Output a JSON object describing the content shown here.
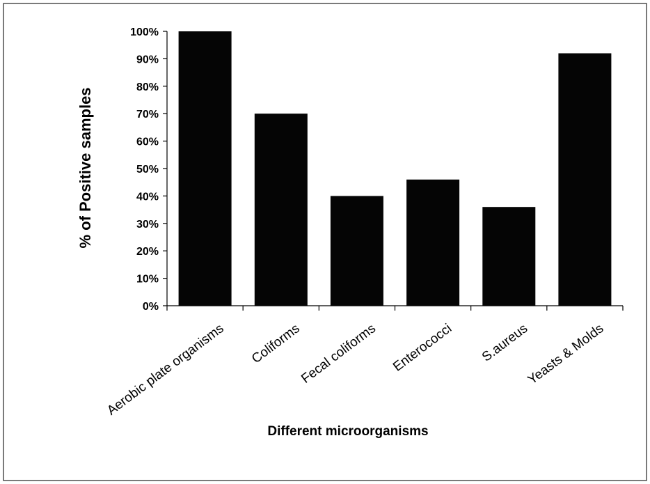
{
  "chart_data": {
    "type": "bar",
    "title": "",
    "xlabel": "Different microorganisms",
    "ylabel": "% of Positive samples",
    "categories": [
      "Aerobic plate organisms",
      "Coliforms",
      "Fecal coliforms",
      "Enterococci",
      "S.aureus",
      "Yeasts & Molds"
    ],
    "values": [
      100,
      70,
      40,
      46,
      36,
      92
    ],
    "ylim": [
      0,
      100
    ],
    "yticks": [
      0,
      10,
      20,
      30,
      40,
      50,
      60,
      70,
      80,
      90,
      100
    ],
    "ytick_labels": [
      "0%",
      "10%",
      "20%",
      "30%",
      "40%",
      "50%",
      "60%",
      "70%",
      "80%",
      "90%",
      "100%"
    ],
    "grid": false,
    "legend": "none",
    "colors": {
      "bar": "#050505",
      "background": "#ffffff",
      "axis": "#000000"
    }
  }
}
